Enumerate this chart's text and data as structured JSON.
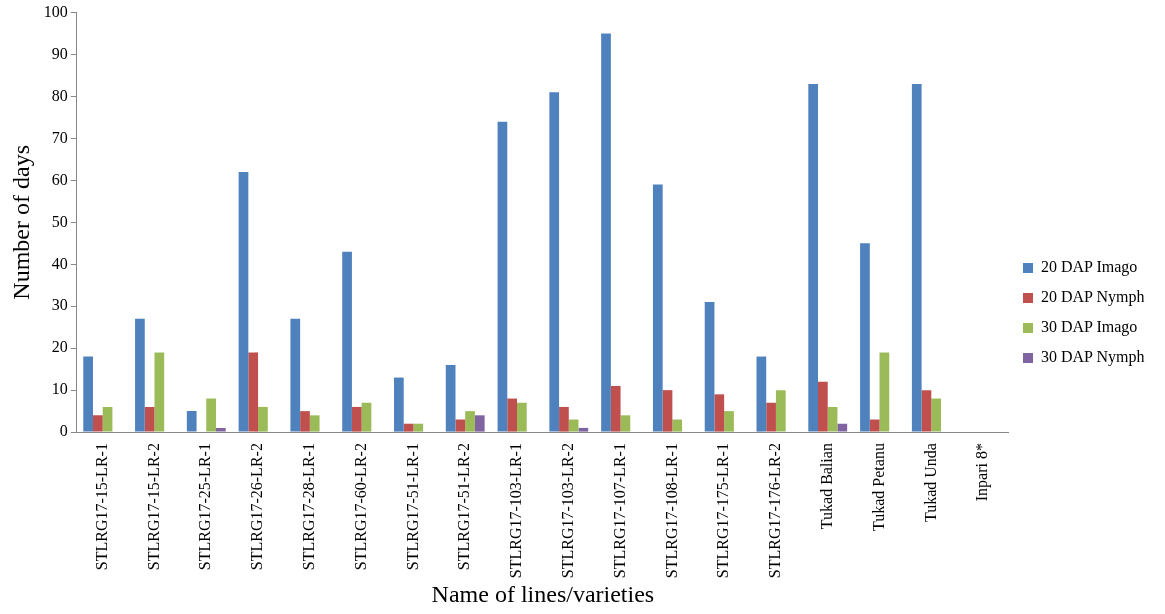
{
  "chart_data": {
    "type": "bar",
    "xlabel": "Name of lines/varieties",
    "ylabel": "Number of days",
    "categories": [
      "STLRG17-15-LR-1",
      "STLRG17-15-LR-2",
      "STLRG17-25-LR-1",
      "STLRG17-26-LR-2",
      "STLRG17-28-LR-1",
      "STLRG17-60-LR-2",
      "STLRG17-51-LR-1",
      "STLRG17-51-LR-2",
      "STLRG17-103-LR-1",
      "STLRG17-103-LR-2",
      "STLRG17-107-LR-1",
      "STLRG17-108-LR-1",
      "STLRG17-175-LR-1",
      "STLRG17-176-LR-2",
      "Tukad Balian",
      "Tukad Petanu",
      "Tukad Unda",
      "Inpari 8*"
    ],
    "series": [
      {
        "name": "20 DAP Imago",
        "color": "#4f81bd",
        "values": [
          18,
          27,
          5,
          62,
          27,
          43,
          13,
          16,
          74,
          81,
          95,
          59,
          31,
          18,
          83,
          45,
          83,
          0
        ]
      },
      {
        "name": "20 DAP Nymph",
        "color": "#c0504d",
        "values": [
          4,
          6,
          0,
          19,
          5,
          6,
          2,
          3,
          8,
          6,
          11,
          10,
          9,
          7,
          12,
          3,
          10,
          0
        ]
      },
      {
        "name": "30 DAP Imago",
        "color": "#9bbb59",
        "values": [
          6,
          19,
          8,
          6,
          4,
          7,
          2,
          5,
          7,
          3,
          4,
          3,
          5,
          10,
          6,
          19,
          8,
          0
        ]
      },
      {
        "name": "30 DAP Nymph",
        "color": "#8064a2",
        "values": [
          0,
          0,
          1,
          0,
          0,
          0,
          0,
          4,
          0,
          1,
          0,
          0,
          0,
          0,
          2,
          0,
          0,
          0
        ]
      }
    ],
    "ylim": [
      0,
      100
    ],
    "yticks": [
      0,
      10,
      20,
      30,
      40,
      50,
      60,
      70,
      80,
      90,
      100
    ],
    "grid": false,
    "legend": "right"
  }
}
